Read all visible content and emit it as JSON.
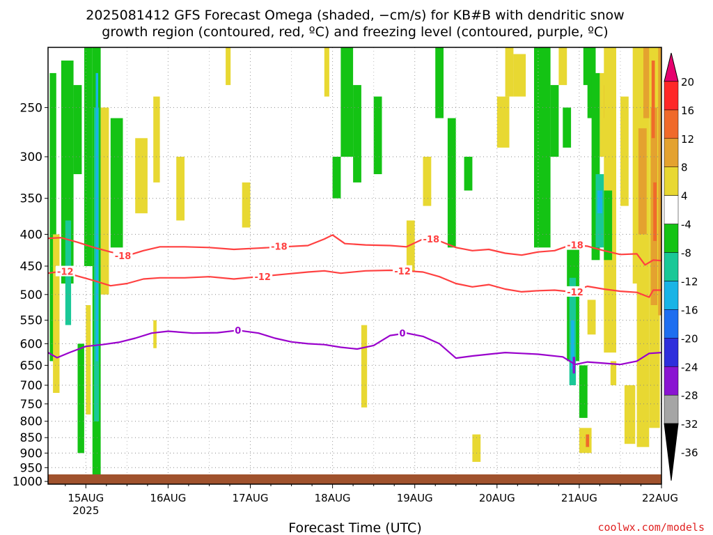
{
  "title_line1": "2025081412 GFS Forecast Omega (shaded, −cm/s) for KB#B with dendritic snow",
  "title_line2": "growth region (contoured, red, ºC) and freezing level (contoured, purple, ºC)",
  "xlabel": "Forecast Time (UTC)",
  "credit": "coolwx.com/models",
  "colors": {
    "dgz": "#ff4040",
    "freezing": "#9900cc",
    "ground": "#a0522d",
    "grid": "#888888"
  },
  "chart_data": {
    "type": "heatmap",
    "x_ticks": [
      {
        "label": "15AUG",
        "sub": "2025",
        "day": 15
      },
      {
        "label": "16AUG",
        "sub": "",
        "day": 16
      },
      {
        "label": "17AUG",
        "sub": "",
        "day": 17
      },
      {
        "label": "18AUG",
        "sub": "",
        "day": 18
      },
      {
        "label": "19AUG",
        "sub": "",
        "day": 19
      },
      {
        "label": "20AUG",
        "sub": "",
        "day": 20
      },
      {
        "label": "21AUG",
        "sub": "",
        "day": 21
      },
      {
        "label": "22AUG",
        "sub": "",
        "day": 22
      }
    ],
    "xlim": [
      14.54,
      22.0
    ],
    "y_ticks": [
      250,
      300,
      350,
      400,
      450,
      500,
      550,
      600,
      650,
      700,
      750,
      800,
      850,
      900,
      950,
      1000
    ],
    "ylim": [
      200,
      1010
    ],
    "ylog": true,
    "colorbar": {
      "labels": [
        "20",
        "16",
        "12",
        "8",
        "4",
        "-4",
        "-8",
        "-12",
        "-16",
        "-20",
        "-24",
        "-28",
        "-32",
        "-36"
      ],
      "colors": [
        "#e6006e",
        "#ff2828",
        "#f06a2a",
        "#e4a22f",
        "#e8d832",
        "#ffffff",
        "#14c314",
        "#19c897",
        "#19b4e6",
        "#1e6ef0",
        "#2e2edc",
        "#8a14d2",
        "#a5a5a5",
        "#000000"
      ]
    },
    "series": [
      {
        "name": "-18",
        "color": "#ff4040",
        "points": [
          [
            14.54,
            406
          ],
          [
            14.7,
            405
          ],
          [
            14.9,
            412
          ],
          [
            15.1,
            420
          ],
          [
            15.3,
            427
          ],
          [
            15.5,
            433
          ],
          [
            15.7,
            425
          ],
          [
            15.9,
            419
          ],
          [
            16.2,
            419
          ],
          [
            16.5,
            420
          ],
          [
            16.8,
            423
          ],
          [
            17.1,
            421
          ],
          [
            17.4,
            419
          ],
          [
            17.7,
            417
          ],
          [
            17.9,
            407
          ],
          [
            18.0,
            401
          ],
          [
            18.15,
            414
          ],
          [
            18.4,
            416
          ],
          [
            18.7,
            417
          ],
          [
            18.9,
            419
          ],
          [
            19.1,
            407
          ],
          [
            19.3,
            410
          ],
          [
            19.5,
            420
          ],
          [
            19.7,
            425
          ],
          [
            19.9,
            423
          ],
          [
            20.1,
            429
          ],
          [
            20.3,
            432
          ],
          [
            20.5,
            427
          ],
          [
            20.7,
            425
          ],
          [
            20.9,
            416
          ],
          [
            21.1,
            418
          ],
          [
            21.3,
            425
          ],
          [
            21.5,
            431
          ],
          [
            21.7,
            430
          ],
          [
            21.8,
            448
          ],
          [
            21.9,
            440
          ],
          [
            22.0,
            441
          ]
        ]
      },
      {
        "name": "-12",
        "color": "#ff4040",
        "points": [
          [
            14.54,
            462
          ],
          [
            14.7,
            459
          ],
          [
            14.9,
            467
          ],
          [
            15.1,
            475
          ],
          [
            15.3,
            484
          ],
          [
            15.5,
            480
          ],
          [
            15.7,
            472
          ],
          [
            15.9,
            470
          ],
          [
            16.2,
            470
          ],
          [
            16.5,
            468
          ],
          [
            16.8,
            472
          ],
          [
            17.1,
            468
          ],
          [
            17.4,
            464
          ],
          [
            17.7,
            460
          ],
          [
            17.9,
            458
          ],
          [
            18.1,
            462
          ],
          [
            18.4,
            458
          ],
          [
            18.7,
            457
          ],
          [
            18.9,
            458
          ],
          [
            19.1,
            460
          ],
          [
            19.3,
            468
          ],
          [
            19.5,
            480
          ],
          [
            19.7,
            486
          ],
          [
            19.9,
            482
          ],
          [
            20.1,
            490
          ],
          [
            20.3,
            495
          ],
          [
            20.5,
            493
          ],
          [
            20.7,
            492
          ],
          [
            20.9,
            495
          ],
          [
            21.1,
            485
          ],
          [
            21.3,
            490
          ],
          [
            21.5,
            494
          ],
          [
            21.7,
            496
          ],
          [
            21.85,
            505
          ],
          [
            21.9,
            492
          ],
          [
            22.0,
            492
          ]
        ]
      },
      {
        "name": "0",
        "color": "#9900cc",
        "points": [
          [
            14.54,
            620
          ],
          [
            14.65,
            632
          ],
          [
            14.8,
            620
          ],
          [
            15.0,
            606
          ],
          [
            15.2,
            602
          ],
          [
            15.4,
            597
          ],
          [
            15.6,
            588
          ],
          [
            15.8,
            577
          ],
          [
            16.0,
            573
          ],
          [
            16.3,
            577
          ],
          [
            16.6,
            576
          ],
          [
            16.85,
            571
          ],
          [
            17.1,
            577
          ],
          [
            17.3,
            588
          ],
          [
            17.5,
            596
          ],
          [
            17.7,
            600
          ],
          [
            17.9,
            602
          ],
          [
            18.1,
            608
          ],
          [
            18.3,
            612
          ],
          [
            18.5,
            604
          ],
          [
            18.7,
            582
          ],
          [
            18.9,
            577
          ],
          [
            19.1,
            584
          ],
          [
            19.3,
            600
          ],
          [
            19.5,
            633
          ],
          [
            19.7,
            628
          ],
          [
            19.9,
            624
          ],
          [
            20.1,
            620
          ],
          [
            20.3,
            622
          ],
          [
            20.5,
            624
          ],
          [
            20.8,
            630
          ],
          [
            20.95,
            648
          ],
          [
            21.1,
            642
          ],
          [
            21.3,
            645
          ],
          [
            21.5,
            648
          ],
          [
            21.7,
            640
          ],
          [
            21.85,
            622
          ],
          [
            22.0,
            620
          ]
        ]
      }
    ],
    "contour_labels": [
      {
        "text": "-18",
        "x": 15.45,
        "y": 433
      },
      {
        "text": "-18",
        "x": 17.35,
        "y": 418
      },
      {
        "text": "-18",
        "x": 19.2,
        "y": 407
      },
      {
        "text": "-18",
        "x": 20.95,
        "y": 416
      },
      {
        "text": "-12",
        "x": 14.75,
        "y": 459
      },
      {
        "text": "-12",
        "x": 17.15,
        "y": 468
      },
      {
        "text": "-12",
        "x": 18.85,
        "y": 458
      },
      {
        "text": "-12",
        "x": 20.95,
        "y": 495
      },
      {
        "text": "0",
        "x": 16.85,
        "y": 571
      },
      {
        "text": "0",
        "x": 18.85,
        "y": 577
      }
    ],
    "shaded_regions": [
      {
        "x": [
          14.56,
          14.64
        ],
        "p": [
          220,
          640
        ],
        "c": "#14c314"
      },
      {
        "x": [
          14.6,
          14.68
        ],
        "p": [
          400,
          720
        ],
        "c": "#e8d832"
      },
      {
        "x": [
          14.7,
          14.85
        ],
        "p": [
          210,
          480
        ],
        "c": "#14c314"
      },
      {
        "x": [
          14.75,
          14.82
        ],
        "p": [
          380,
          560
        ],
        "c": "#19c897"
      },
      {
        "x": [
          14.85,
          14.95
        ],
        "p": [
          230,
          320
        ],
        "c": "#14c314"
      },
      {
        "x": [
          14.9,
          14.98
        ],
        "p": [
          600,
          900
        ],
        "c": "#14c314"
      },
      {
        "x": [
          14.98,
          15.08
        ],
        "p": [
          200,
          450
        ],
        "c": "#14c314"
      },
      {
        "x": [
          15.0,
          15.06
        ],
        "p": [
          520,
          780
        ],
        "c": "#e8d832"
      },
      {
        "x": [
          15.08,
          15.18
        ],
        "p": [
          200,
          980
        ],
        "c": "#14c314"
      },
      {
        "x": [
          15.1,
          15.16
        ],
        "p": [
          250,
          800
        ],
        "c": "#19c897"
      },
      {
        "x": [
          15.12,
          15.15
        ],
        "p": [
          220,
          640
        ],
        "c": "#19b4e6"
      },
      {
        "x": [
          15.18,
          15.28
        ],
        "p": [
          250,
          500
        ],
        "c": "#e8d832"
      },
      {
        "x": [
          15.3,
          15.45
        ],
        "p": [
          260,
          420
        ],
        "c": "#14c314"
      },
      {
        "x": [
          15.6,
          15.75
        ],
        "p": [
          280,
          370
        ],
        "c": "#e8d832"
      },
      {
        "x": [
          15.82,
          15.9
        ],
        "p": [
          240,
          330
        ],
        "c": "#e8d832"
      },
      {
        "x": [
          15.82,
          15.86
        ],
        "p": [
          550,
          610
        ],
        "c": "#e8d832"
      },
      {
        "x": [
          16.1,
          16.2
        ],
        "p": [
          300,
          380
        ],
        "c": "#e8d832"
      },
      {
        "x": [
          16.7,
          16.76
        ],
        "p": [
          200,
          230
        ],
        "c": "#e8d832"
      },
      {
        "x": [
          16.9,
          17.0
        ],
        "p": [
          330,
          390
        ],
        "c": "#e8d832"
      },
      {
        "x": [
          17.9,
          17.96
        ],
        "p": [
          200,
          240
        ],
        "c": "#e8d832"
      },
      {
        "x": [
          18.0,
          18.1
        ],
        "p": [
          300,
          350
        ],
        "c": "#14c314"
      },
      {
        "x": [
          18.1,
          18.25
        ],
        "p": [
          200,
          300
        ],
        "c": "#14c314"
      },
      {
        "x": [
          18.25,
          18.35
        ],
        "p": [
          230,
          330
        ],
        "c": "#14c314"
      },
      {
        "x": [
          18.35,
          18.42
        ],
        "p": [
          560,
          760
        ],
        "c": "#e8d832"
      },
      {
        "x": [
          18.5,
          18.6
        ],
        "p": [
          240,
          320
        ],
        "c": "#14c314"
      },
      {
        "x": [
          18.9,
          19.0
        ],
        "p": [
          380,
          460
        ],
        "c": "#e8d832"
      },
      {
        "x": [
          19.1,
          19.2
        ],
        "p": [
          300,
          360
        ],
        "c": "#e8d832"
      },
      {
        "x": [
          19.25,
          19.35
        ],
        "p": [
          200,
          260
        ],
        "c": "#14c314"
      },
      {
        "x": [
          19.4,
          19.5
        ],
        "p": [
          260,
          420
        ],
        "c": "#14c314"
      },
      {
        "x": [
          19.6,
          19.7
        ],
        "p": [
          300,
          340
        ],
        "c": "#14c314"
      },
      {
        "x": [
          19.7,
          19.8
        ],
        "p": [
          840,
          930
        ],
        "c": "#e8d832"
      },
      {
        "x": [
          20.0,
          20.15
        ],
        "p": [
          240,
          290
        ],
        "c": "#e8d832"
      },
      {
        "x": [
          20.1,
          20.2
        ],
        "p": [
          200,
          240
        ],
        "c": "#e8d832"
      },
      {
        "x": [
          20.2,
          20.35
        ],
        "p": [
          205,
          240
        ],
        "c": "#e8d832"
      },
      {
        "x": [
          20.45,
          20.65
        ],
        "p": [
          200,
          420
        ],
        "c": "#14c314"
      },
      {
        "x": [
          20.65,
          20.75
        ],
        "p": [
          230,
          300
        ],
        "c": "#14c314"
      },
      {
        "x": [
          20.75,
          20.85
        ],
        "p": [
          200,
          230
        ],
        "c": "#e8d832"
      },
      {
        "x": [
          20.8,
          20.9
        ],
        "p": [
          250,
          290
        ],
        "c": "#14c314"
      },
      {
        "x": [
          20.85,
          21.0
        ],
        "p": [
          420,
          640
        ],
        "c": "#14c314"
      },
      {
        "x": [
          20.88,
          20.96
        ],
        "p": [
          470,
          700
        ],
        "c": "#19c897"
      },
      {
        "x": [
          20.9,
          20.94
        ],
        "p": [
          550,
          660
        ],
        "c": "#19b4e6"
      },
      {
        "x": [
          20.92,
          20.95
        ],
        "p": [
          630,
          670
        ],
        "c": "#8a14d2"
      },
      {
        "x": [
          21.0,
          21.1
        ],
        "p": [
          650,
          790
        ],
        "c": "#14c314"
      },
      {
        "x": [
          21.05,
          21.15
        ],
        "p": [
          200,
          230
        ],
        "c": "#14c314"
      },
      {
        "x": [
          21.0,
          21.15
        ],
        "p": [
          820,
          900
        ],
        "c": "#e8d832"
      },
      {
        "x": [
          21.08,
          21.12
        ],
        "p": [
          840,
          880
        ],
        "c": "#f06a2a"
      },
      {
        "x": [
          21.1,
          21.2
        ],
        "p": [
          510,
          580
        ],
        "c": "#e8d832"
      },
      {
        "x": [
          21.1,
          21.2
        ],
        "p": [
          200,
          260
        ],
        "c": "#14c314"
      },
      {
        "x": [
          21.15,
          21.25
        ],
        "p": [
          220,
          440
        ],
        "c": "#14c314"
      },
      {
        "x": [
          21.2,
          21.3
        ],
        "p": [
          320,
          420
        ],
        "c": "#19c897"
      },
      {
        "x": [
          21.22,
          21.28
        ],
        "p": [
          340,
          370
        ],
        "c": "#19b4e6"
      },
      {
        "x": [
          21.25,
          21.35
        ],
        "p": [
          220,
          300
        ],
        "c": "#e8d832"
      },
      {
        "x": [
          21.3,
          21.34
        ],
        "p": [
          230,
          260
        ],
        "c": "#f06a2a"
      },
      {
        "x": [
          21.3,
          21.45
        ],
        "p": [
          200,
          620
        ],
        "c": "#e8d832"
      },
      {
        "x": [
          21.3,
          21.4
        ],
        "p": [
          340,
          440
        ],
        "c": "#14c314"
      },
      {
        "x": [
          21.38,
          21.45
        ],
        "p": [
          640,
          700
        ],
        "c": "#e8d832"
      },
      {
        "x": [
          21.5,
          21.6
        ],
        "p": [
          240,
          360
        ],
        "c": "#e8d832"
      },
      {
        "x": [
          21.55,
          21.68
        ],
        "p": [
          700,
          870
        ],
        "c": "#e8d832"
      },
      {
        "x": [
          21.65,
          21.75
        ],
        "p": [
          200,
          480
        ],
        "c": "#e8d832"
      },
      {
        "x": [
          21.7,
          21.85
        ],
        "p": [
          200,
          880
        ],
        "c": "#e8d832"
      },
      {
        "x": [
          21.72,
          21.82
        ],
        "p": [
          270,
          400
        ],
        "c": "#e4a22f"
      },
      {
        "x": [
          21.78,
          21.86
        ],
        "p": [
          200,
          260
        ],
        "c": "#e4a22f"
      },
      {
        "x": [
          21.85,
          21.98
        ],
        "p": [
          200,
          820
        ],
        "c": "#e8d832"
      },
      {
        "x": [
          21.87,
          21.95
        ],
        "p": [
          250,
          520
        ],
        "c": "#e4a22f"
      },
      {
        "x": [
          21.88,
          21.92
        ],
        "p": [
          210,
          280
        ],
        "c": "#f06a2a"
      },
      {
        "x": [
          21.9,
          21.94
        ],
        "p": [
          330,
          410
        ],
        "c": "#f06a2a"
      },
      {
        "x": [
          21.96,
          22.0
        ],
        "p": [
          200,
          540
        ],
        "c": "#e4a22f"
      }
    ]
  }
}
